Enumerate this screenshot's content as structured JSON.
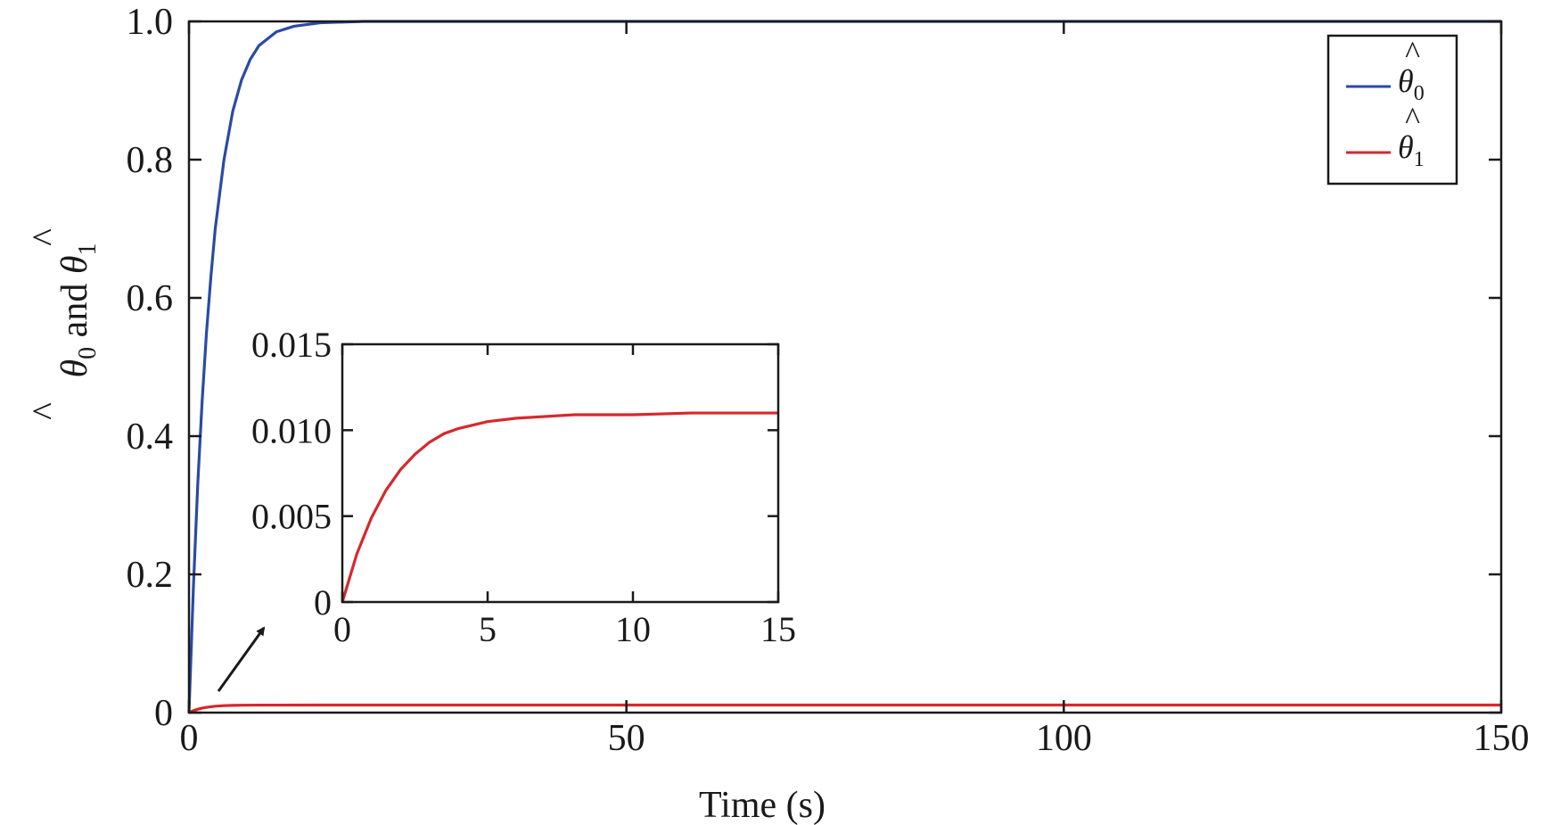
{
  "chart_data": [
    {
      "id": "main",
      "type": "line",
      "xlabel": "Time (s)",
      "ylabel_symbol": "θ",
      "ylabel_hat": "^",
      "ylabel_sub0": "0",
      "ylabel_and": "and",
      "ylabel_sub1": "1",
      "xlim": [
        0,
        150
      ],
      "ylim": [
        0,
        1.0
      ],
      "xticks": [
        0,
        50,
        100,
        150
      ],
      "xtick_labels": [
        "0",
        "50",
        "100",
        "150"
      ],
      "yticks": [
        0,
        0.2,
        0.4,
        0.6,
        0.8,
        1.0
      ],
      "ytick_labels": [
        "0",
        "0.2",
        "0.4",
        "0.6",
        "0.8",
        "1.0"
      ],
      "grid": false,
      "legend_position": "top-right",
      "series": [
        {
          "name": "θ̂0",
          "legend_symbol": "θ",
          "legend_hat": "^",
          "legend_sub": "0",
          "color": "#2b4aa5",
          "x": [
            0,
            0.5,
            1,
            1.5,
            2,
            2.5,
            3,
            4,
            5,
            6,
            7,
            8,
            10,
            12,
            15,
            20,
            30,
            50,
            100,
            150
          ],
          "y": [
            0,
            0.18,
            0.33,
            0.45,
            0.55,
            0.63,
            0.7,
            0.8,
            0.87,
            0.915,
            0.945,
            0.965,
            0.985,
            0.993,
            0.998,
            1.0,
            1.0,
            1.0,
            1.0,
            1.0
          ]
        },
        {
          "name": "θ̂1",
          "legend_symbol": "θ",
          "legend_hat": "^",
          "legend_sub": "1",
          "color": "#d6282d",
          "x": [
            0,
            0.5,
            1,
            1.5,
            2,
            3,
            4,
            5,
            6,
            8,
            10,
            15,
            50,
            100,
            150
          ],
          "y": [
            0,
            0.0028,
            0.0049,
            0.0065,
            0.0077,
            0.0093,
            0.0101,
            0.0105,
            0.0107,
            0.0109,
            0.0109,
            0.011,
            0.011,
            0.011,
            0.011
          ]
        }
      ]
    },
    {
      "id": "inset",
      "type": "line",
      "xlim": [
        0,
        15
      ],
      "ylim": [
        0,
        0.015
      ],
      "xticks": [
        0,
        5,
        10,
        15
      ],
      "xtick_labels": [
        "0",
        "5",
        "10",
        "15"
      ],
      "yticks": [
        0,
        0.005,
        0.01,
        0.015
      ],
      "ytick_labels": [
        "0",
        "0.005",
        "0.010",
        "0.015"
      ],
      "grid": false,
      "series": [
        {
          "color": "#d6282d",
          "x": [
            0,
            0.5,
            1,
            1.5,
            2,
            2.5,
            3,
            3.5,
            4,
            5,
            6,
            7,
            8,
            10,
            12,
            15
          ],
          "y": [
            0,
            0.0028,
            0.0049,
            0.0065,
            0.0077,
            0.0086,
            0.0093,
            0.0098,
            0.0101,
            0.0105,
            0.0107,
            0.0108,
            0.0109,
            0.0109,
            0.011,
            0.011
          ]
        }
      ]
    }
  ]
}
